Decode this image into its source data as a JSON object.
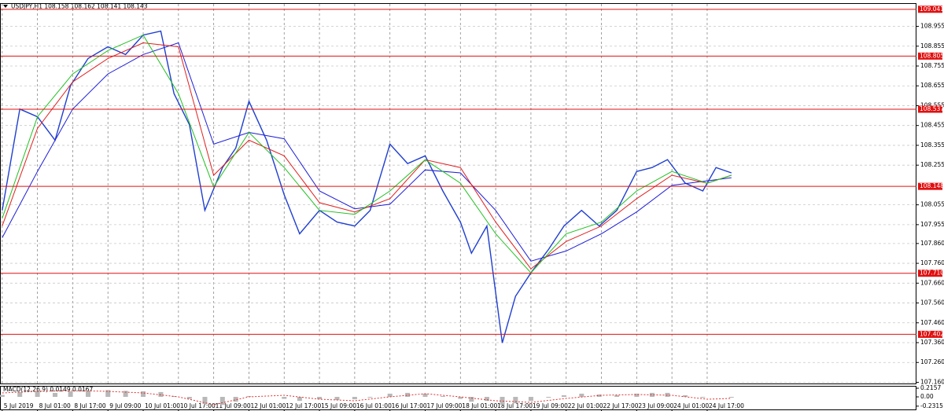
{
  "chart_data": [
    {
      "type": "line",
      "title": "USDJPY,H1  108.158 108.162 108.141 108.143",
      "xlim": [
        -1,
        415
      ],
      "xticks": [
        {
          "value": 0,
          "label": "5 Jul 2019"
        },
        {
          "value": 16,
          "label": "8 Jul 01:00"
        },
        {
          "value": 32,
          "label": "8 Jul 17:00"
        },
        {
          "value": 48,
          "label": "9 Jul 09:00"
        },
        {
          "value": 64,
          "label": "10 Jul 01:00"
        },
        {
          "value": 80,
          "label": "10 Jul 17:00"
        },
        {
          "value": 96,
          "label": "11 Jul 09:00"
        },
        {
          "value": 112,
          "label": "12 Jul 01:00"
        },
        {
          "value": 128,
          "label": "12 Jul 17:00"
        },
        {
          "value": 144,
          "label": "15 Jul 09:00"
        },
        {
          "value": 160,
          "label": "16 Jul 01:00"
        },
        {
          "value": 176,
          "label": "16 Jul 17:00"
        },
        {
          "value": 192,
          "label": "17 Jul 09:00"
        },
        {
          "value": 208,
          "label": "18 Jul 01:00"
        },
        {
          "value": 224,
          "label": "18 Jul 17:00"
        },
        {
          "value": 240,
          "label": "19 Jul 09:00"
        },
        {
          "value": 256,
          "label": "22 Jul 01:00"
        },
        {
          "value": 272,
          "label": "22 Jul 17:00"
        },
        {
          "value": 288,
          "label": "23 Jul 09:00"
        },
        {
          "value": 304,
          "label": "24 Jul 01:00"
        },
        {
          "value": 320,
          "label": "24 Jul 17:00"
        }
      ],
      "ylim": [
        107.15,
        109.072
      ],
      "yticks": [
        108.955,
        108.855,
        108.755,
        108.655,
        108.555,
        108.455,
        108.355,
        108.255,
        108.055,
        107.955,
        {
          "value": 107.86,
          "label": "107.860"
        },
        {
          "value": 107.76,
          "label": "107.760"
        },
        {
          "value": 107.66,
          "label": "107.660"
        },
        {
          "value": 107.56,
          "label": "107.560"
        },
        {
          "value": 107.46,
          "label": "107.460"
        },
        {
          "value": 107.36,
          "label": "107.360"
        },
        {
          "value": 107.26,
          "label": "107.260"
        },
        {
          "value": 107.16,
          "label": "107.160"
        }
      ],
      "levels": [
        109.041,
        108.805,
        108.537,
        108.148,
        {
          "value": 107.71,
          "label": "107.710"
        },
        107.402
      ],
      "level_color": "#e01010",
      "grid": true,
      "series": [
        {
          "color": "#1f3fd0",
          "width": 1.4,
          "x": [
            0,
            8,
            16,
            24,
            31,
            39,
            48,
            56,
            64,
            72,
            78,
            85,
            92,
            100,
            106,
            112,
            120,
            128,
            135,
            144,
            152,
            160,
            167,
            176,
            184,
            192,
            200,
            208,
            213,
            220,
            227,
            233,
            240,
            248,
            255,
            263,
            271,
            279,
            288,
            295,
            302,
            310,
            318,
            324,
            331
          ],
          "values": [
            108.027,
            108.538,
            108.499,
            108.381,
            108.656,
            108.793,
            108.852,
            108.813,
            108.911,
            108.931,
            108.616,
            108.459,
            108.027,
            108.243,
            108.341,
            108.577,
            108.381,
            108.105,
            107.909,
            108.027,
            107.968,
            107.948,
            108.027,
            108.361,
            108.263,
            108.302,
            108.125,
            107.968,
            107.811,
            107.948,
            107.359,
            107.594,
            107.712,
            107.83,
            107.948,
            108.027,
            107.948,
            108.027,
            108.223,
            108.243,
            108.283,
            108.165,
            108.125,
            108.243,
            108.216
          ]
        },
        {
          "color": "#1c1cd8",
          "width": 1,
          "x": [
            0,
            16,
            32,
            48,
            64,
            80,
            96,
            112,
            128,
            144,
            160,
            176,
            192,
            208,
            224,
            240,
            256,
            272,
            288,
            304,
            320,
            331
          ],
          "values": [
            107.889,
            108.223,
            108.538,
            108.715,
            108.813,
            108.872,
            108.361,
            108.42,
            108.388,
            108.125,
            108.035,
            108.058,
            108.231,
            108.216,
            108.027,
            107.771,
            107.822,
            107.909,
            108.019,
            108.153,
            108.176,
            108.192
          ]
        },
        {
          "color": "#e02020",
          "width": 1,
          "x": [
            0,
            16,
            32,
            48,
            64,
            80,
            96,
            112,
            128,
            144,
            160,
            176,
            192,
            208,
            224,
            240,
            256,
            272,
            288,
            304,
            320,
            331
          ],
          "values": [
            107.948,
            108.44,
            108.675,
            108.793,
            108.872,
            108.852,
            108.204,
            108.381,
            108.302,
            108.066,
            108.019,
            108.086,
            108.282,
            108.243,
            107.968,
            107.732,
            107.87,
            107.948,
            108.086,
            108.204,
            108.164,
            108.204
          ]
        },
        {
          "color": "#20c020",
          "width": 1,
          "x": [
            0,
            16,
            32,
            48,
            64,
            80,
            96,
            112,
            128,
            144,
            160,
            176,
            192,
            208,
            224,
            240,
            256,
            272,
            288,
            304,
            320,
            331
          ],
          "values": [
            107.987,
            108.499,
            108.715,
            108.833,
            108.911,
            108.616,
            108.145,
            108.42,
            108.243,
            108.027,
            108.007,
            108.125,
            108.282,
            108.164,
            107.909,
            107.712,
            107.909,
            107.968,
            108.125,
            108.223,
            108.164,
            108.204
          ]
        }
      ]
    },
    {
      "type": "bar",
      "title": "MACD(12,26,9) 0.0149 0.0167",
      "xlim": [
        -1,
        415
      ],
      "ylim": [
        -0.333,
        0.275
      ],
      "yticks": [
        0.2157,
        {
          "value": 0,
          "label": "0.00"
        },
        -0.2315
      ],
      "series": [
        {
          "kind": "bar",
          "color": "#b8b8b8",
          "x": [
            0,
            8,
            16,
            24,
            31,
            39,
            48,
            56,
            64,
            72,
            78,
            85,
            92,
            100,
            106,
            112,
            120,
            128,
            135,
            144,
            152,
            160,
            167,
            176,
            184,
            192,
            200,
            208,
            213,
            220,
            227,
            233,
            240,
            248,
            255,
            263,
            271,
            279,
            288,
            295,
            302,
            310,
            318,
            324,
            331
          ],
          "values": [
            0.05,
            0.12,
            0.15,
            0.1,
            0.14,
            0.16,
            0.17,
            0.15,
            0.14,
            0.12,
            0.02,
            -0.05,
            -0.18,
            -0.2,
            -0.12,
            0.02,
            0,
            -0.05,
            -0.1,
            -0.06,
            -0.08,
            -0.06,
            -0.02,
            0.08,
            0.1,
            0.08,
            0.02,
            -0.05,
            -0.12,
            -0.1,
            -0.2,
            -0.16,
            -0.1,
            -0.02,
            0.04,
            0.08,
            0.06,
            0.04,
            0.08,
            0.1,
            0.1,
            0.04,
            -0.02,
            0,
            -0.02
          ]
        },
        {
          "kind": "line",
          "color": "#e03030",
          "x": [
            0,
            16,
            32,
            48,
            64,
            80,
            96,
            112,
            128,
            144,
            160,
            176,
            192,
            208,
            224,
            240,
            256,
            272,
            288,
            304,
            320,
            331
          ],
          "values": [
            0.098,
            0.137,
            0.157,
            0.137,
            0.098,
            0,
            -0.196,
            0,
            0.039,
            -0.059,
            -0.098,
            0,
            0.078,
            0,
            -0.098,
            -0.137,
            -0.039,
            0.039,
            0.059,
            0.039,
            -0.059,
            -0.039
          ]
        }
      ]
    }
  ]
}
